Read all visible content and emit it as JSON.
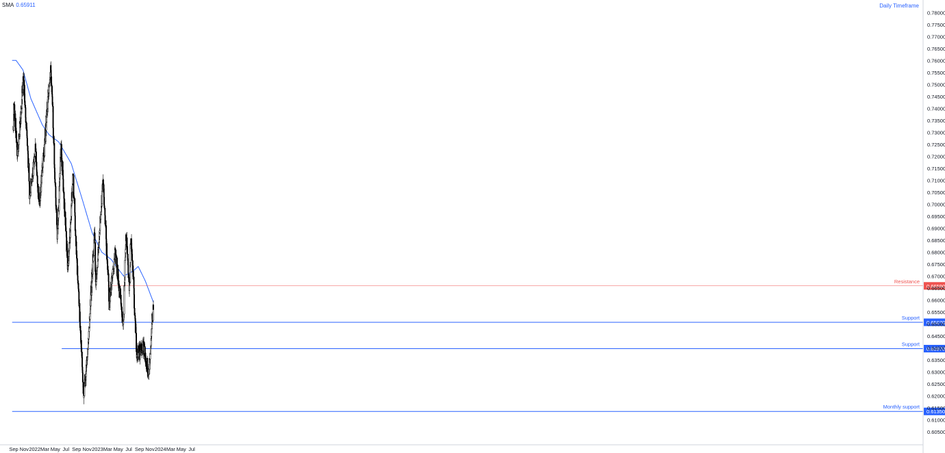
{
  "legend": {
    "indicator": "SMA",
    "value": "0.65911"
  },
  "timeframe_label": "Daily Timeframe",
  "colors": {
    "sma": "#2962ff",
    "support": "#2962ff",
    "resistance": "#ef5350",
    "candle": "#000000",
    "axis_text": "#131722"
  },
  "chart_data": {
    "type": "candlestick",
    "x_ticks": [
      "Sep",
      "Nov",
      "2022",
      "Mar",
      "May",
      "Jul",
      "Sep",
      "Nov",
      "2023",
      "Mar",
      "May",
      "Jul",
      "Sep",
      "Nov",
      "2024",
      "Mar",
      "May",
      "Jul"
    ],
    "y_ticks": [
      "0.78000",
      "0.77500",
      "0.77000",
      "0.76500",
      "0.76000",
      "0.75500",
      "0.75000",
      "0.74500",
      "0.74000",
      "0.73500",
      "0.73000",
      "0.72500",
      "0.72000",
      "0.71500",
      "0.71000",
      "0.70500",
      "0.70000",
      "0.69500",
      "0.69000",
      "0.68500",
      "0.68000",
      "0.67500",
      "0.67000",
      "0.66500",
      "0.66000",
      "0.65500",
      "0.65000",
      "0.64500",
      "0.64000",
      "0.63500",
      "0.63000",
      "0.62500",
      "0.62000",
      "0.61500",
      "0.61000",
      "0.60500"
    ],
    "ylim": [
      0.603,
      0.7815
    ],
    "price_path": [
      [
        "2021-08-30",
        0.731
      ],
      [
        "2021-09-03",
        0.742
      ],
      [
        "2021-09-20",
        0.723
      ],
      [
        "2021-10-01",
        0.725
      ],
      [
        "2021-10-28",
        0.754
      ],
      [
        "2021-11-25",
        0.717
      ],
      [
        "2021-12-03",
        0.703
      ],
      [
        "2022-01-05",
        0.723
      ],
      [
        "2022-01-28",
        0.699
      ],
      [
        "2022-02-25",
        0.723
      ],
      [
        "2022-03-20",
        0.744
      ],
      [
        "2022-04-04",
        0.76
      ],
      [
        "2022-05-12",
        0.686
      ],
      [
        "2022-06-03",
        0.724
      ],
      [
        "2022-07-14",
        0.672
      ],
      [
        "2022-08-11",
        0.712
      ],
      [
        "2022-09-05",
        0.673
      ],
      [
        "2022-10-13",
        0.62
      ],
      [
        "2022-11-04",
        0.638
      ],
      [
        "2022-12-14",
        0.688
      ],
      [
        "2022-12-22",
        0.664
      ],
      [
        "2023-02-02",
        0.711
      ],
      [
        "2023-03-10",
        0.659
      ],
      [
        "2023-04-14",
        0.679
      ],
      [
        "2023-05-31",
        0.65
      ],
      [
        "2023-06-15",
        0.689
      ],
      [
        "2023-07-05",
        0.664
      ],
      [
        "2023-07-14",
        0.688
      ],
      [
        "2023-08-17",
        0.637
      ],
      [
        "2023-09-28",
        0.64
      ],
      [
        "2023-10-26",
        0.629
      ],
      [
        "2023-11-14",
        0.652
      ],
      [
        "2023-11-21",
        0.656
      ]
    ],
    "sma_path": [
      [
        "2021-08-23",
        0.76
      ],
      [
        "2021-09-15",
        0.76
      ],
      [
        "2021-10-25",
        0.756
      ],
      [
        "2021-12-10",
        0.744
      ],
      [
        "2022-02-15",
        0.733
      ],
      [
        "2022-03-25",
        0.729
      ],
      [
        "2022-05-20",
        0.726
      ],
      [
        "2022-08-01",
        0.717
      ],
      [
        "2022-09-30",
        0.703
      ],
      [
        "2022-12-01",
        0.688
      ],
      [
        "2023-01-25",
        0.68
      ],
      [
        "2023-03-20",
        0.677
      ],
      [
        "2023-06-01",
        0.67
      ],
      [
        "2023-07-25",
        0.672
      ],
      [
        "2023-08-25",
        0.674
      ],
      [
        "2023-10-05",
        0.668
      ],
      [
        "2023-11-21",
        0.6591
      ]
    ],
    "levels": [
      {
        "label": "Resistance",
        "value": "0.66590",
        "price": 0.6659,
        "from": "2023-03-02",
        "color": "#ef5350"
      },
      {
        "label": "Support",
        "value": "0.65070",
        "price": 0.6507,
        "from": "2021-08-23",
        "color": "#2962ff"
      },
      {
        "label": "Support",
        "value": "0.63970",
        "price": 0.6397,
        "from": "2022-06-07",
        "color": "#2962ff"
      },
      {
        "label": "Monthly support",
        "value": "0.61350",
        "price": 0.6135,
        "from": "2021-08-23",
        "color": "#2962ff"
      }
    ]
  }
}
